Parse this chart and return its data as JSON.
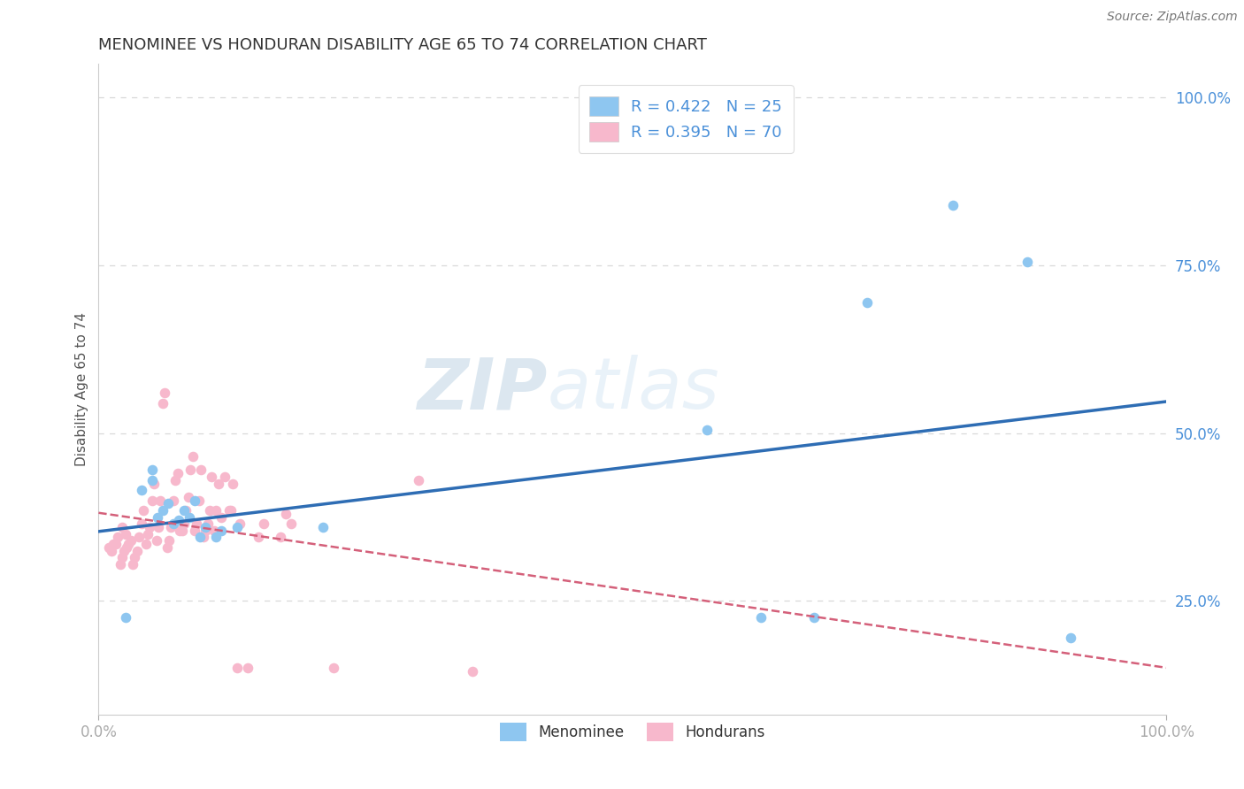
{
  "title": "MENOMINEE VS HONDURAN DISABILITY AGE 65 TO 74 CORRELATION CHART",
  "source_text": "Source: ZipAtlas.com",
  "ylabel": "Disability Age 65 to 74",
  "xlim": [
    0.0,
    1.0
  ],
  "ylim": [
    0.08,
    1.05
  ],
  "legend_r1": "R = 0.422   N = 25",
  "legend_r2": "R = 0.395   N = 70",
  "watermark_zip": "ZIP",
  "watermark_atlas": "atlas",
  "menominee_color": "#8ec6f0",
  "honduran_color": "#f7b8cc",
  "trend_blue_color": "#2e6db4",
  "trend_pink_color": "#d4607a",
  "background_color": "#ffffff",
  "grid_color": "#d8d8d8",
  "tick_color": "#4a90d9",
  "menominee_points": [
    [
      0.025,
      0.225
    ],
    [
      0.04,
      0.415
    ],
    [
      0.05,
      0.43
    ],
    [
      0.05,
      0.445
    ],
    [
      0.055,
      0.375
    ],
    [
      0.06,
      0.385
    ],
    [
      0.065,
      0.395
    ],
    [
      0.07,
      0.365
    ],
    [
      0.075,
      0.37
    ],
    [
      0.08,
      0.385
    ],
    [
      0.085,
      0.375
    ],
    [
      0.09,
      0.4
    ],
    [
      0.095,
      0.345
    ],
    [
      0.1,
      0.36
    ],
    [
      0.11,
      0.345
    ],
    [
      0.115,
      0.355
    ],
    [
      0.13,
      0.36
    ],
    [
      0.21,
      0.36
    ],
    [
      0.57,
      0.505
    ],
    [
      0.62,
      0.225
    ],
    [
      0.67,
      0.225
    ],
    [
      0.72,
      0.695
    ],
    [
      0.8,
      0.84
    ],
    [
      0.87,
      0.755
    ],
    [
      0.91,
      0.195
    ]
  ],
  "honduran_points": [
    [
      0.01,
      0.33
    ],
    [
      0.012,
      0.325
    ],
    [
      0.014,
      0.335
    ],
    [
      0.016,
      0.335
    ],
    [
      0.018,
      0.345
    ],
    [
      0.02,
      0.305
    ],
    [
      0.022,
      0.315
    ],
    [
      0.024,
      0.325
    ],
    [
      0.026,
      0.33
    ],
    [
      0.028,
      0.335
    ],
    [
      0.03,
      0.34
    ],
    [
      0.025,
      0.35
    ],
    [
      0.022,
      0.36
    ],
    [
      0.032,
      0.305
    ],
    [
      0.034,
      0.315
    ],
    [
      0.036,
      0.325
    ],
    [
      0.038,
      0.345
    ],
    [
      0.04,
      0.365
    ],
    [
      0.042,
      0.385
    ],
    [
      0.044,
      0.335
    ],
    [
      0.046,
      0.35
    ],
    [
      0.048,
      0.36
    ],
    [
      0.05,
      0.4
    ],
    [
      0.052,
      0.425
    ],
    [
      0.054,
      0.34
    ],
    [
      0.056,
      0.36
    ],
    [
      0.058,
      0.4
    ],
    [
      0.06,
      0.545
    ],
    [
      0.062,
      0.56
    ],
    [
      0.064,
      0.33
    ],
    [
      0.066,
      0.34
    ],
    [
      0.068,
      0.36
    ],
    [
      0.07,
      0.4
    ],
    [
      0.072,
      0.43
    ],
    [
      0.074,
      0.44
    ],
    [
      0.076,
      0.355
    ],
    [
      0.078,
      0.355
    ],
    [
      0.08,
      0.365
    ],
    [
      0.082,
      0.385
    ],
    [
      0.084,
      0.405
    ],
    [
      0.086,
      0.445
    ],
    [
      0.088,
      0.465
    ],
    [
      0.09,
      0.355
    ],
    [
      0.092,
      0.365
    ],
    [
      0.094,
      0.4
    ],
    [
      0.096,
      0.445
    ],
    [
      0.098,
      0.345
    ],
    [
      0.1,
      0.355
    ],
    [
      0.102,
      0.365
    ],
    [
      0.104,
      0.385
    ],
    [
      0.106,
      0.435
    ],
    [
      0.108,
      0.355
    ],
    [
      0.11,
      0.385
    ],
    [
      0.112,
      0.425
    ],
    [
      0.115,
      0.375
    ],
    [
      0.118,
      0.435
    ],
    [
      0.122,
      0.385
    ],
    [
      0.124,
      0.385
    ],
    [
      0.126,
      0.425
    ],
    [
      0.13,
      0.15
    ],
    [
      0.132,
      0.365
    ],
    [
      0.14,
      0.15
    ],
    [
      0.15,
      0.345
    ],
    [
      0.155,
      0.365
    ],
    [
      0.17,
      0.345
    ],
    [
      0.175,
      0.38
    ],
    [
      0.18,
      0.365
    ],
    [
      0.22,
      0.15
    ],
    [
      0.3,
      0.43
    ],
    [
      0.35,
      0.145
    ]
  ]
}
